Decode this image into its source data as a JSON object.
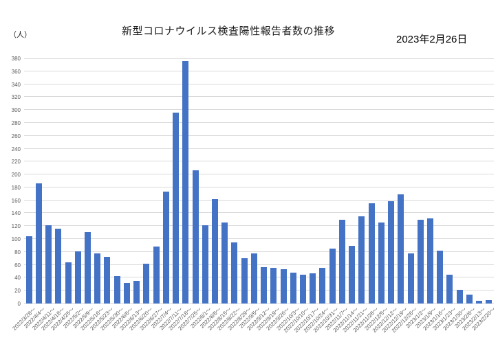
{
  "header": {
    "unit_label": "（人）",
    "title": "新型コロナウイルス検査陽性報告者数の推移",
    "date": "2023年2月26日"
  },
  "chart_data": {
    "type": "bar",
    "title": "新型コロナウイルス検査陽性報告者数の推移",
    "ylabel": "（人）",
    "ylim": [
      0,
      380
    ],
    "ytick_step": 20,
    "grid": true,
    "legend": false,
    "bar_color": "#4472c4",
    "grid_color": "#d9d9d9",
    "tick_label_color": "#595959",
    "categories": [
      "2022/3/28～",
      "2022/4/4～",
      "2022/4/11～",
      "2022/4/18～",
      "2022/4/25～",
      "2022/5/2～",
      "2022/5/9～",
      "2022/5/16～",
      "2022/5/23～",
      "2022/5/30～",
      "2022/6/6～",
      "2022/6/13～",
      "2022/6/20～",
      "2022/6/27～",
      "2022/7/4～",
      "2022/7/11～",
      "2022/7/18～",
      "2022/7/25～",
      "2022/8/1～",
      "2022/8/8～",
      "2022/8/15～",
      "2022/8/22～",
      "2022/8/29～",
      "2022/9/5～",
      "2022/9/12～",
      "2022/9/19～",
      "2022/9/26～",
      "2022/10/3～",
      "2022/10/10～",
      "2022/10/17～",
      "2022/10/24～",
      "2022/10/31～",
      "2022/11/7～",
      "2022/11/14～",
      "2022/11/21～",
      "2022/11/28～",
      "2022/12/5～",
      "2022/12/12～",
      "2022/12/19～",
      "2022/12/26～",
      "2023/1/2～",
      "2023/1/9～",
      "2023/1/16～",
      "2023/1/23～",
      "2023/1/30～",
      "2023/2/6～",
      "2023/2/13～",
      "2023/2/20～"
    ],
    "values": [
      104,
      186,
      121,
      116,
      64,
      81,
      111,
      78,
      72,
      43,
      32,
      35,
      62,
      88,
      173,
      296,
      376,
      206,
      121,
      162,
      126,
      95,
      70,
      78,
      56,
      55,
      53,
      48,
      45,
      47,
      55,
      85,
      130,
      89,
      135,
      155,
      126,
      159,
      169,
      78,
      130,
      132,
      82,
      45,
      21,
      14,
      4,
      5
    ]
  }
}
